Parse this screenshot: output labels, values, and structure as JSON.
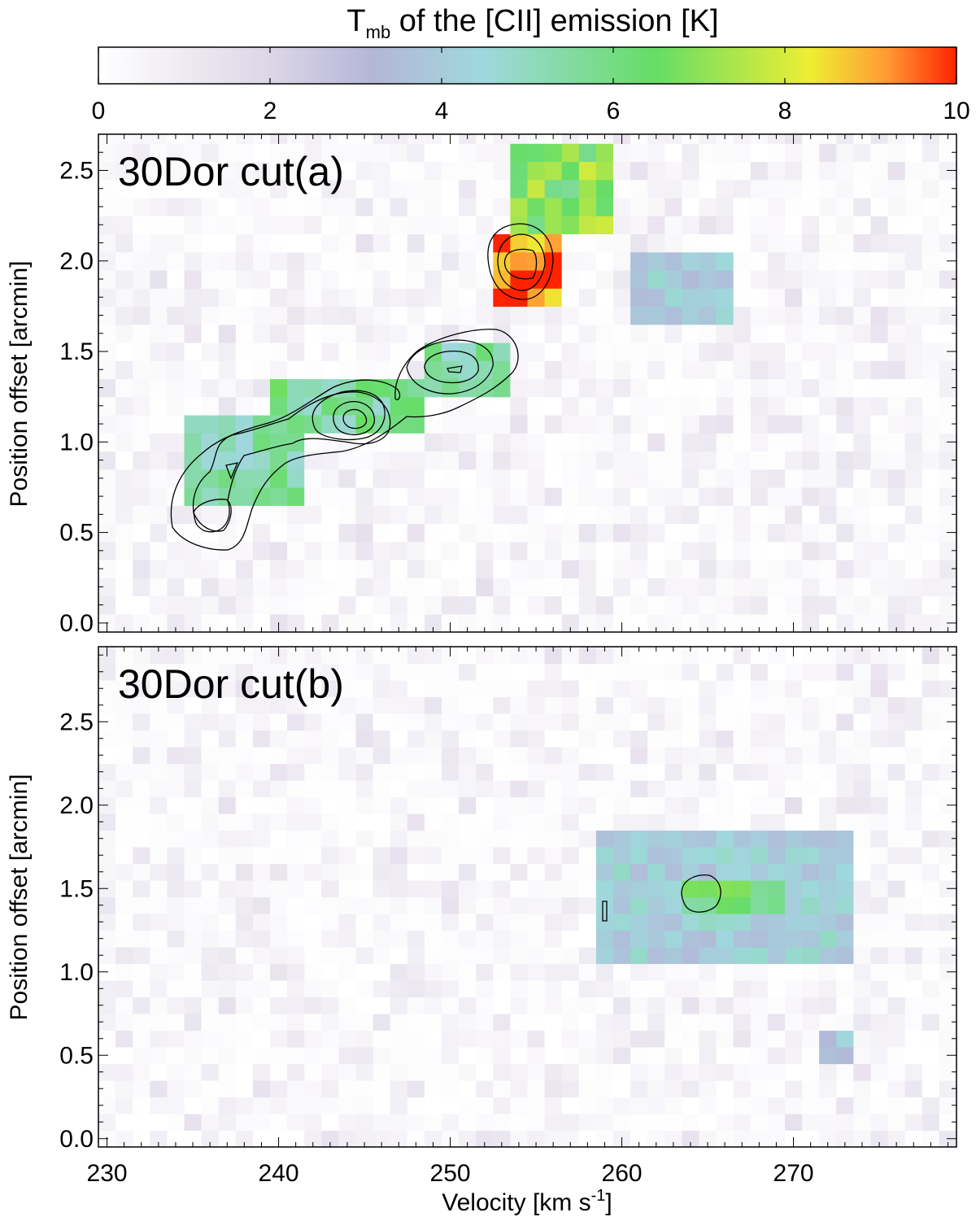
{
  "colorbar": {
    "title_main": "T",
    "title_sub": "mb",
    "title_rest": " of the [CII] emission [K]",
    "range": [
      0,
      10
    ],
    "ticks": [
      "0",
      "2",
      "4",
      "6",
      "8",
      "10"
    ],
    "stops": [
      {
        "v": 0,
        "c": "#ffffff"
      },
      {
        "v": 2,
        "c": "#ddd6e6"
      },
      {
        "v": 3.2,
        "c": "#b4b6d8"
      },
      {
        "v": 4.5,
        "c": "#9fd8dc"
      },
      {
        "v": 6.5,
        "c": "#66dd66"
      },
      {
        "v": 8.3,
        "c": "#eeee33"
      },
      {
        "v": 9.2,
        "c": "#ff9933"
      },
      {
        "v": 10,
        "c": "#ff2200"
      }
    ]
  },
  "x_axis": {
    "label_main": "Velocity [km s",
    "label_sup": "-1",
    "label_end": "]",
    "ticks": [
      "230",
      "240",
      "250",
      "260",
      "270"
    ]
  },
  "y_axis": {
    "label": "Position offset [arcmin]",
    "ticks": [
      "0.0",
      "0.5",
      "1.0",
      "1.5",
      "2.0",
      "2.5"
    ]
  },
  "chart_data": [
    {
      "type": "heatmap",
      "title": "30Dor cut(a)",
      "xlabel": "Velocity [km s-1]",
      "ylabel": "Position offset [arcmin]",
      "xlim": [
        229.5,
        279.5
      ],
      "ylim": [
        -0.05,
        2.7
      ],
      "colorbar_label": "Tmb of the [CII] emission [K]",
      "color_range": [
        0,
        10
      ],
      "features": [
        {
          "v_range": [
            235,
            241
          ],
          "y_range": [
            0.65,
            1.15
          ],
          "tmb": 5.5
        },
        {
          "v_range": [
            240,
            248
          ],
          "y_range": [
            1.05,
            1.3
          ],
          "tmb": 5.8
        },
        {
          "v_range": [
            249,
            253
          ],
          "y_range": [
            1.3,
            1.6
          ],
          "tmb": 5.5
        },
        {
          "v_range": [
            253,
            256
          ],
          "y_range": [
            1.75,
            2.2
          ],
          "tmb": 10
        },
        {
          "v_range": [
            254,
            259
          ],
          "y_range": [
            2.2,
            2.7
          ],
          "tmb": 7
        },
        {
          "v_range": [
            261,
            266
          ],
          "y_range": [
            1.7,
            2.1
          ],
          "tmb": 4.2
        }
      ],
      "contour_peaks": [
        {
          "v": 236,
          "y": 0.6
        },
        {
          "v": 244.5,
          "y": 1.15
        },
        {
          "v": 250.5,
          "y": 1.42
        },
        {
          "v": 254.5,
          "y": 2.0
        }
      ]
    },
    {
      "type": "heatmap",
      "title": "30Dor cut(b)",
      "xlabel": "Velocity [km s-1]",
      "ylabel": "Position offset [arcmin]",
      "xlim": [
        229.5,
        279.5
      ],
      "ylim": [
        -0.05,
        2.95
      ],
      "colorbar_label": "Tmb of the [CII] emission [K]",
      "color_range": [
        0,
        10
      ],
      "features": [
        {
          "v_range": [
            259,
            273
          ],
          "y_range": [
            1.05,
            1.9
          ],
          "tmb": 4.3
        },
        {
          "v_range": [
            264,
            269
          ],
          "y_range": [
            1.35,
            1.6
          ],
          "tmb": 6.3
        },
        {
          "v_range": [
            272,
            273
          ],
          "y_range": [
            0.4,
            0.6
          ],
          "tmb": 4
        }
      ],
      "contour_peaks": [
        {
          "v": 265,
          "y": 1.47
        },
        {
          "v": 259,
          "y": 1.4
        }
      ]
    }
  ]
}
